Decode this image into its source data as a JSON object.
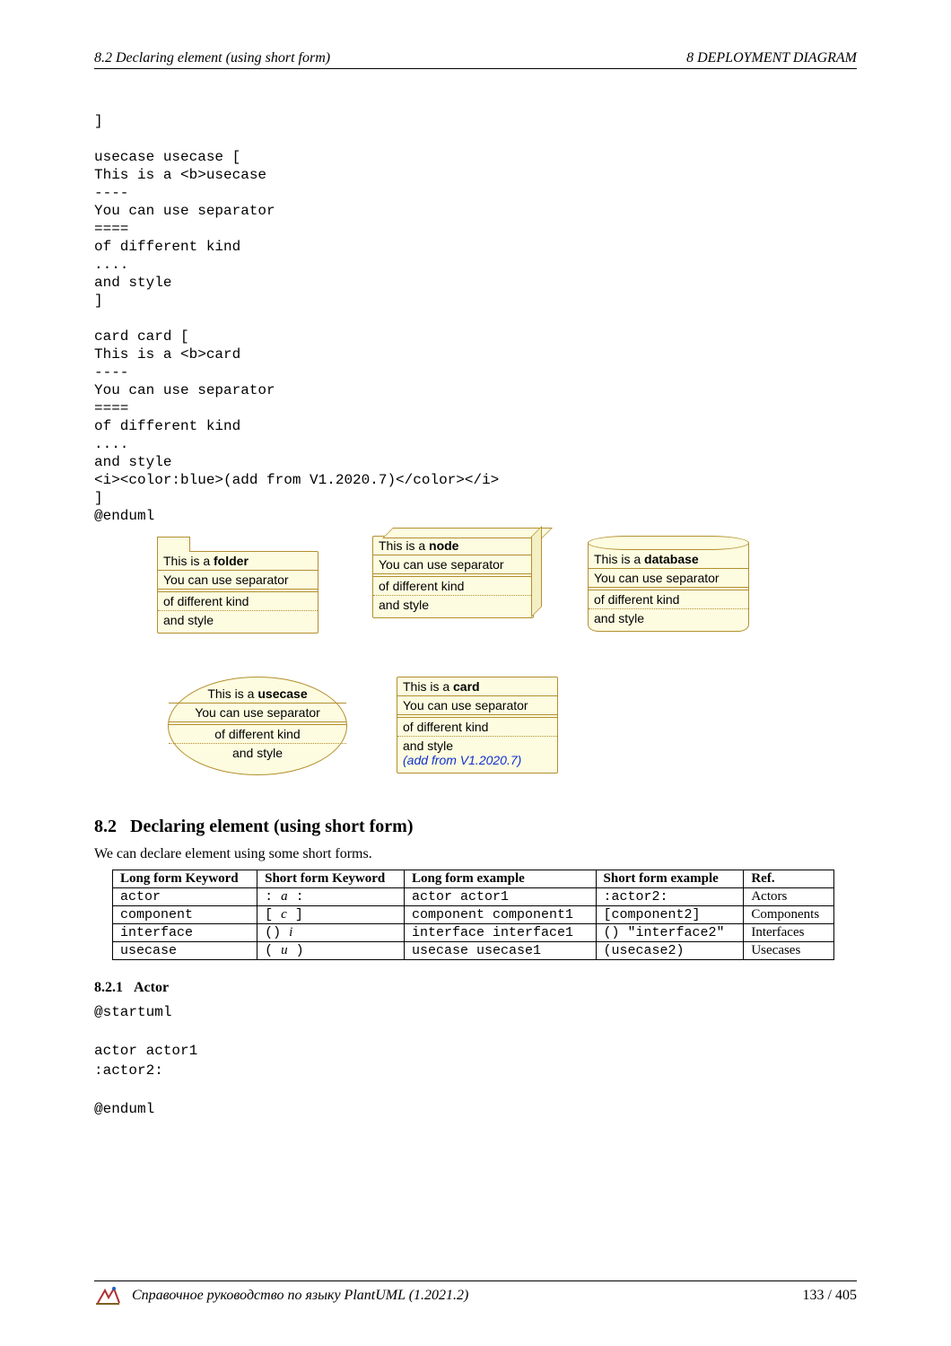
{
  "header": {
    "left": "8.2   Declaring element (using short form)",
    "right": "8   DEPLOYMENT DIAGRAM"
  },
  "code_block": "]\n\nusecase usecase [\nThis is a <b>usecase\n----\nYou can use separator\n====\nof different kind\n....\nand style\n]\n\ncard card [\nThis is a <b>card\n----\nYou can use separator\n====\nof different kind\n....\nand style\n<i><color:blue>(add from V1.2020.7)</color></i>\n]\n@enduml",
  "diagrams": {
    "line1_prefix": "This is a ",
    "folder_name": "folder",
    "node_name": "node",
    "database_name": "database",
    "usecase_name": "usecase",
    "card_name": "card",
    "line2": "You can use separator",
    "line3": "of different kind",
    "line4": "and style",
    "card_add": "(add from V1.2020.7)",
    "fill_color": "#fdfce0",
    "border_color": "#b38f2e"
  },
  "section": {
    "number": "8.2",
    "title": "Declaring element (using short form)",
    "intro": "We can declare element using some short forms."
  },
  "table": {
    "headers": [
      "Long form Keyword",
      "Short form Keyword",
      "Long form example",
      "Short form example",
      "Ref."
    ],
    "rows": [
      {
        "long": "actor",
        "short_pre": ": ",
        "short_i": "a",
        "short_post": " :",
        "ex_long": "actor actor1",
        "ex_short": ":actor2:",
        "ref": "Actors"
      },
      {
        "long": "component",
        "short_pre": "[ ",
        "short_i": "c",
        "short_post": " ]",
        "ex_long": "component component1",
        "ex_short": "[component2]",
        "ref": "Components"
      },
      {
        "long": "interface",
        "short_pre": "() ",
        "short_i": "i",
        "short_post": "",
        "ex_long": "interface interface1",
        "ex_short": "() \"interface2\"",
        "ref": "Interfaces"
      },
      {
        "long": "usecase",
        "short_pre": "( ",
        "short_i": "u",
        "short_post": " )",
        "ex_long": "usecase usecase1",
        "ex_short": "(usecase2)",
        "ref": "Usecases"
      }
    ]
  },
  "subsection": {
    "number": "8.2.1",
    "title": "Actor"
  },
  "code_block2": "@startuml\n\nactor actor1\n:actor2:\n\n@enduml",
  "footer": {
    "text": "Справочное руководство по языку PlantUML (1.2021.2)",
    "page": "133 / 405"
  }
}
